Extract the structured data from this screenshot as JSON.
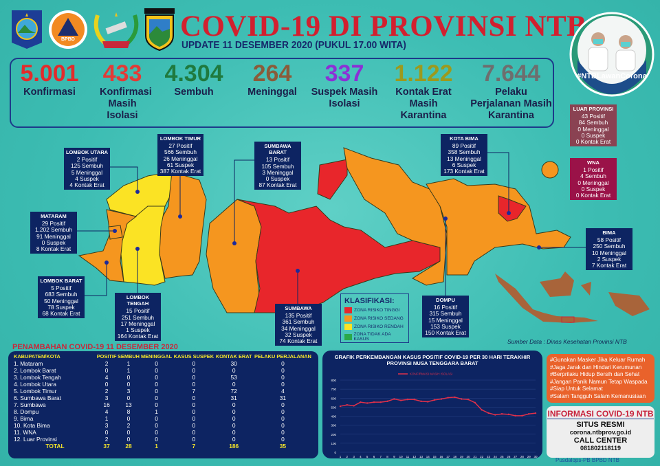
{
  "header": {
    "title": "COVID-19 DI PROVINSI NTB",
    "subtitle": "UPDATE 11 DESEMBER 2020 (PUKUL 17.00 WITA)",
    "logos": [
      "ntb-province-emblem",
      "bpbd-logo",
      "wira-dharma-logo",
      "polda-ntb-logo"
    ],
    "logo_text": {
      "bpbd": "BPBD",
      "wira": "WIRA DHARMA",
      "polda": "POLDA NUSA TENGGARA BARAT"
    },
    "campaign_hashtag": "#NTBLawanCorona"
  },
  "stats": [
    {
      "value": "5.001",
      "label": "Konfirmasi",
      "color": "#e32b2b"
    },
    {
      "value": "433",
      "label": "Konfirmasi Masih Isolasi",
      "color": "#e33a36"
    },
    {
      "value": "4.304",
      "label": "Sembuh",
      "color": "#1f7a3e"
    },
    {
      "value": "264",
      "label": "Meninggal",
      "color": "#8a5c3a"
    },
    {
      "value": "337",
      "label": "Suspek Masih Isolasi",
      "color": "#8c2fd6"
    },
    {
      "value": "1.122",
      "label": "Kontak Erat Masih Karantina",
      "color": "#9c9a1e"
    },
    {
      "value": "7.644",
      "label": "Pelaku Perjalanan Masih Karantina",
      "color": "#6e6e6e"
    }
  ],
  "regions": [
    {
      "name": "LOMBOK UTARA",
      "lines": [
        "2 Positif",
        "125 Sembuh",
        "5 Meninggal",
        "4 Suspek",
        "4 Kontak Erat"
      ]
    },
    {
      "name": "LOMBOK TIMUR",
      "lines": [
        "27 Positif",
        "566 Sembuh",
        "26 Meninggal",
        "61 Suspek",
        "387 Kontak Erat"
      ]
    },
    {
      "name": "MATARAM",
      "lines": [
        "29 Positif",
        "1.202 Sembuh",
        "91 Meninggal",
        "0 Suspek",
        "8 Kontak Erat"
      ]
    },
    {
      "name": "LOMBOK BARAT",
      "lines": [
        "5 Positif",
        "683 Sembuh",
        "50 Meninggal",
        "78 Suspek",
        "68 Kontak Erat"
      ]
    },
    {
      "name": "LOMBOK TENGAH",
      "lines": [
        "15 Positif",
        "251 Sembuh",
        "17 Meninggal",
        "1 Suspek",
        "164 Kontak Erat"
      ]
    },
    {
      "name": "SUMBAWA BARAT",
      "lines": [
        "13 Positif",
        "105 Sembuh",
        "3 Meninggal",
        "0 Suspek",
        "87 Kontak Erat"
      ]
    },
    {
      "name": "SUMBAWA",
      "lines": [
        "135 Positif",
        "361 Sembuh",
        "34 Meninggal",
        "32 Suspek",
        "74 Kontak Erat"
      ]
    },
    {
      "name": "KOTA BIMA",
      "lines": [
        "89 Positif",
        "358 Sembuh",
        "13 Meninggal",
        "6 Suspek",
        "173 Kontak Erat"
      ]
    },
    {
      "name": "DOMPU",
      "lines": [
        "16 Positif",
        "315 Sembuh",
        "15 Meninggal",
        "153 Suspek",
        "150 Kontak Erat"
      ]
    },
    {
      "name": "BIMA",
      "lines": [
        "58 Positif",
        "250 Sembuh",
        "10 Meninggal",
        "2 Suspek",
        "7 Kontak Erat"
      ]
    },
    {
      "name": "LUAR PROVINSI",
      "lines": [
        "43 Positif",
        "84 Sembuh",
        "0 Meninggal",
        "0 Suspek",
        "0 Kontak Erat"
      ]
    },
    {
      "name": "WNA",
      "lines": [
        "1 Positif",
        "4 Sembuh",
        "0 Meninggal",
        "0 Suspek",
        "0 Kontak Erat"
      ]
    }
  ],
  "legend": {
    "title": "KLASIFIKASI:",
    "items": [
      {
        "label": "ZONA RISIKO TINGGI",
        "color": "#e8262b"
      },
      {
        "label": "ZONA RISIKO SEDANG",
        "color": "#f5961f"
      },
      {
        "label": "ZONA RISIKO RENDAH",
        "color": "#fbe324"
      },
      {
        "label": "ZONA TIDAK ADA KASUS",
        "color": "#2aa84a"
      }
    ]
  },
  "source": "Sumber Data : Dinas Kesehatan Provinsi NTB",
  "table": {
    "title": "PENAMBAHAN COVID-19 11 DESEMBER 2020",
    "headers": [
      "KABUPATEN/KOTA",
      "POSITIF",
      "SEMBUH",
      "MENINGGAL",
      "KASUS SUSPEK",
      "KONTAK ERAT",
      "PELAKU PERJALANAN"
    ],
    "rows": [
      [
        "1. Mataram",
        "2",
        "1",
        "0",
        "0",
        "30",
        "0"
      ],
      [
        "2. Lombok Barat",
        "0",
        "1",
        "0",
        "0",
        "0",
        "0"
      ],
      [
        "3. Lombok Tengah",
        "4",
        "0",
        "0",
        "0",
        "53",
        "0"
      ],
      [
        "4. Lombok Utara",
        "0",
        "0",
        "0",
        "0",
        "0",
        "0"
      ],
      [
        "5. Lombok Timur",
        "2",
        "3",
        "0",
        "7",
        "72",
        "4"
      ],
      [
        "6. Sumbawa Barat",
        "3",
        "0",
        "0",
        "0",
        "31",
        "31"
      ],
      [
        "7. Sumbawa",
        "16",
        "13",
        "0",
        "0",
        "0",
        "0"
      ],
      [
        "8. Dompu",
        "4",
        "8",
        "1",
        "0",
        "0",
        "0"
      ],
      [
        "9. Bima",
        "1",
        "0",
        "0",
        "0",
        "0",
        "0"
      ],
      [
        "10. Kota Bima",
        "3",
        "2",
        "0",
        "0",
        "0",
        "0"
      ],
      [
        "11. WNA",
        "0",
        "0",
        "0",
        "0",
        "0",
        "0"
      ],
      [
        "12. Luar Provinsi",
        "2",
        "0",
        "0",
        "0",
        "0",
        "0"
      ]
    ],
    "total": [
      "TOTAL",
      "37",
      "28",
      "1",
      "7",
      "186",
      "35"
    ]
  },
  "chart_data": {
    "type": "line",
    "title": "GRAFIK PERKEMBANGAN KASUS POSITIF COVID-19 PER 30 HARI TERAKHIR",
    "subtitle": "PROVINSI NUSA TENGGARA BARAT",
    "x": [
      1,
      2,
      3,
      4,
      5,
      6,
      7,
      8,
      9,
      10,
      11,
      12,
      13,
      14,
      15,
      16,
      17,
      18,
      19,
      20,
      21,
      22,
      23,
      24,
      25,
      26,
      27,
      28,
      29,
      30
    ],
    "series": [
      {
        "name": "KONFIRMASI MASIH ISOLASI",
        "color": "#e0304a",
        "values": [
          510,
          525,
          515,
          555,
          545,
          555,
          555,
          565,
          590,
          575,
          585,
          585,
          565,
          560,
          580,
          590,
          605,
          610,
          590,
          585,
          550,
          470,
          435,
          415,
          425,
          420,
          405,
          405,
          425,
          433
        ]
      }
    ],
    "ylim": [
      0,
      800
    ],
    "yticks": [
      0,
      100,
      200,
      300,
      400,
      500,
      600,
      700,
      800
    ],
    "grid": true,
    "legend_position": "top"
  },
  "tips": [
    "#Gunakan Masker Jika Keluar Rumah",
    "#Jaga Jarak dan Hindari Kerumunan",
    "#Berprilaku Hidup Bersih dan Sehat",
    "#Jangan Panik Namun Tetap Waspada",
    "#Siap Untuk Selamat",
    "#Salam Tangguh Salam Kemanusiaan"
  ],
  "info": {
    "title": "INFORMASI COVID-19 NTB",
    "site_label": "SITUS RESMI",
    "site": "corona.ntbprov.go.id",
    "call_label": "CALL CENTER",
    "phone": "081802118119"
  },
  "credit": "Pusdalops-PB BPBD NTB"
}
